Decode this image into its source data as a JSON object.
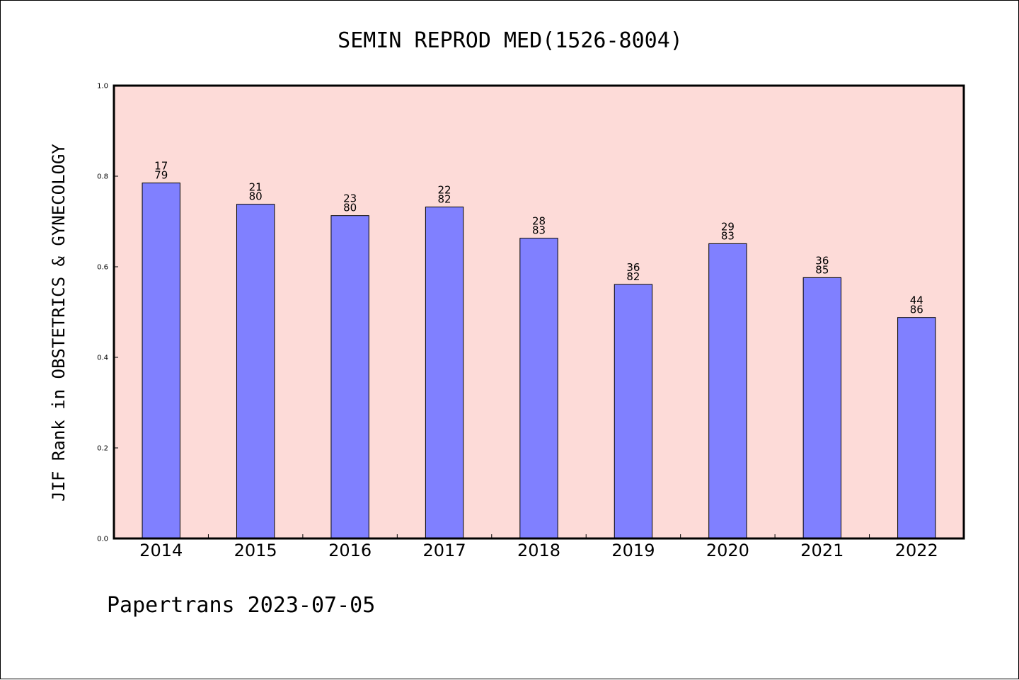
{
  "footer": {
    "text": "Papertrans 2023-07-05"
  },
  "colors": {
    "plot_background": "#fddbd8",
    "bar_fill": "#8080ff",
    "bar_stroke": "#000000",
    "axis": "#000000"
  },
  "chart_data": {
    "type": "bar",
    "title": "SEMIN REPROD MED(1526-8004)",
    "xlabel": "",
    "ylabel": "JIF Rank in OBSTETRICS & GYNECOLOGY",
    "ylim": [
      0,
      1.0
    ],
    "yticks": [
      "0.0",
      "0.2",
      "0.4",
      "0.6",
      "0.8",
      "1.0"
    ],
    "grid": false,
    "categories": [
      "2014",
      "2015",
      "2016",
      "2017",
      "2018",
      "2019",
      "2020",
      "2021",
      "2022"
    ],
    "values": [
      0.785,
      0.738,
      0.713,
      0.732,
      0.663,
      0.561,
      0.651,
      0.576,
      0.488
    ],
    "rank": [
      "17",
      "21",
      "23",
      "22",
      "28",
      "36",
      "29",
      "36",
      "44"
    ],
    "total": [
      "79",
      "80",
      "80",
      "82",
      "83",
      "82",
      "83",
      "85",
      "86"
    ]
  }
}
